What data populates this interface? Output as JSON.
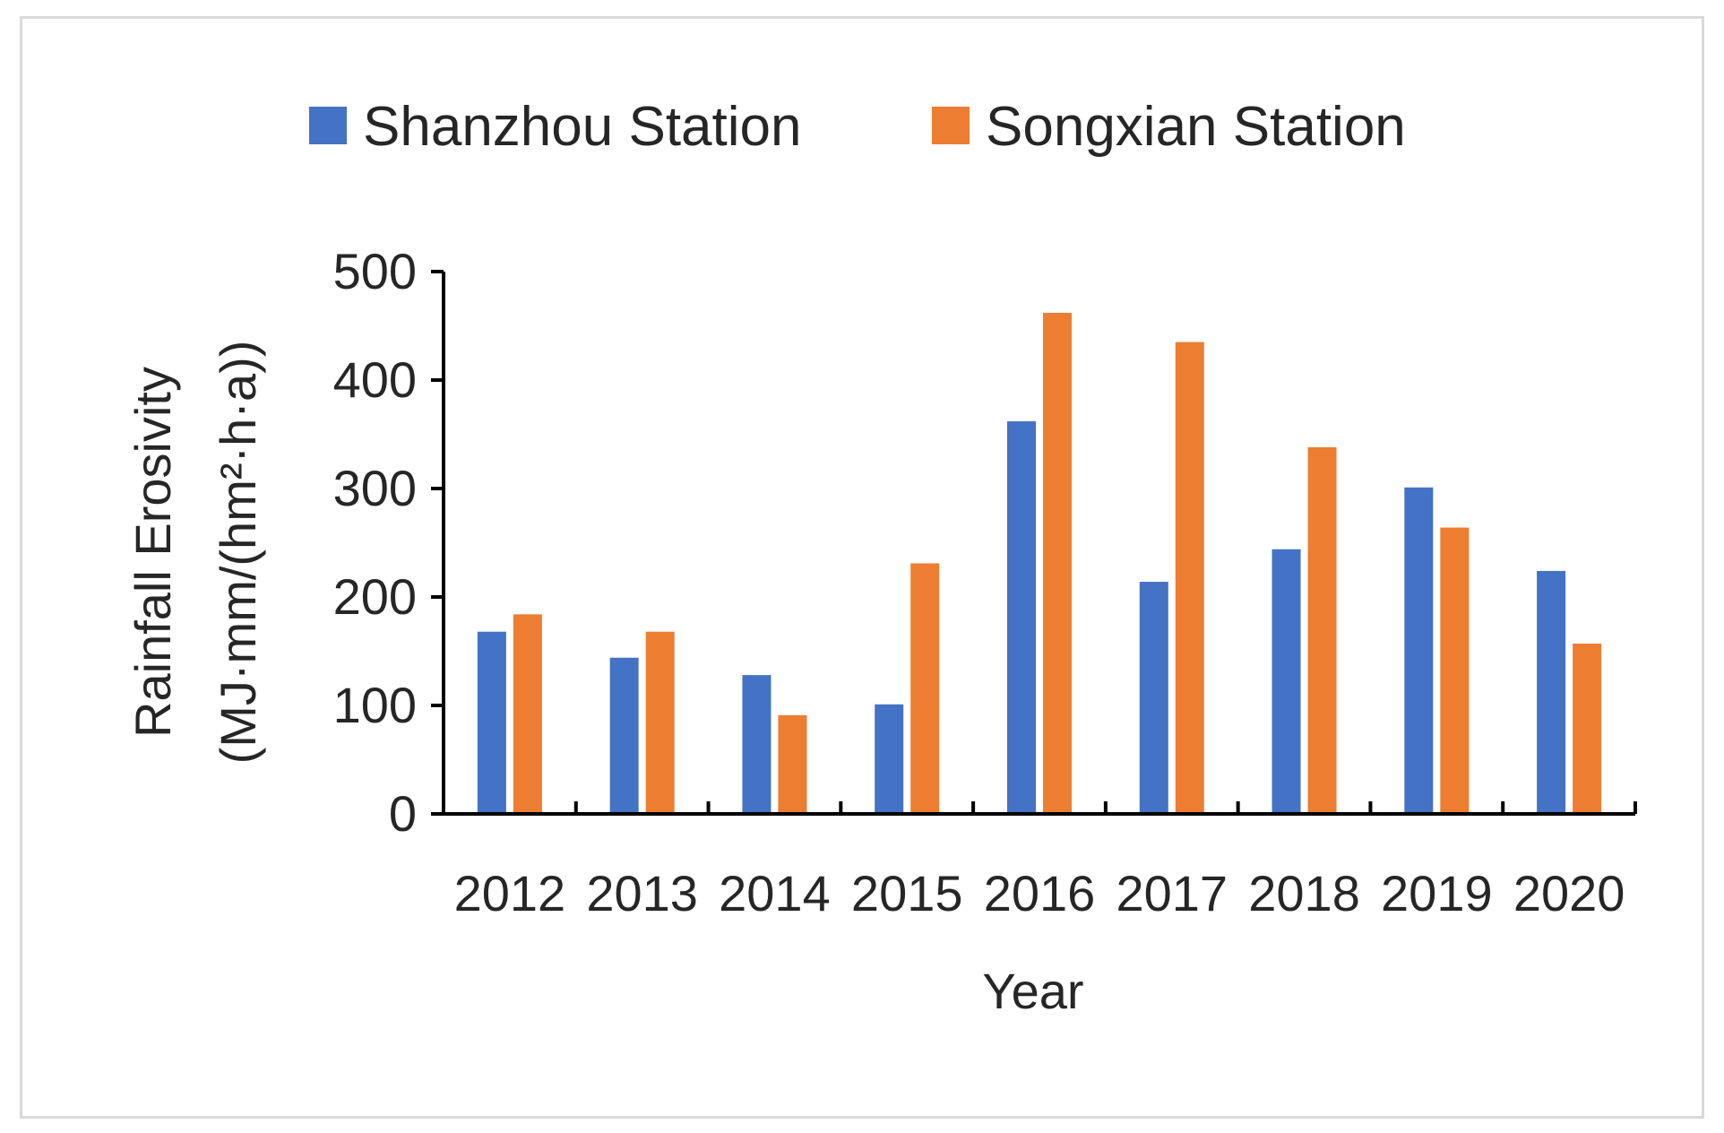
{
  "chart_data": {
    "type": "bar",
    "title": "",
    "xlabel": "Year",
    "ylabel": "Rainfall Erosivity",
    "ylabel_unit": "(MJ·mm/(hm²·h·a))",
    "categories": [
      "2012",
      "2013",
      "2014",
      "2015",
      "2016",
      "2017",
      "2018",
      "2019",
      "2020"
    ],
    "series": [
      {
        "name": "Shanzhou Station",
        "color": "#4472C4",
        "values": [
          168,
          144,
          128,
          101,
          362,
          214,
          244,
          301,
          224
        ]
      },
      {
        "name": "Songxian Station",
        "color": "#ED7D31",
        "values": [
          184,
          168,
          91,
          231,
          462,
          435,
          338,
          264,
          157
        ]
      }
    ],
    "ylim": [
      0,
      500
    ],
    "yticks": [
      "0",
      "100",
      "200",
      "300",
      "400",
      "500"
    ],
    "grid": false,
    "legend_position": "top"
  }
}
